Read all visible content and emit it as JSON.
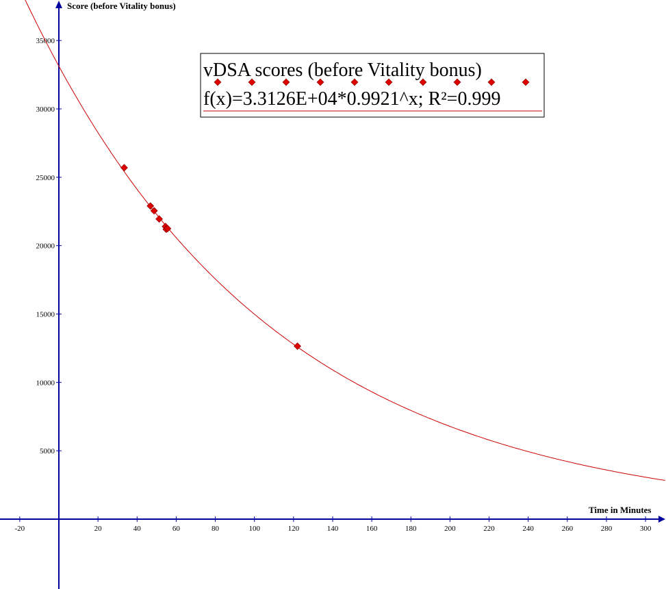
{
  "chart_data": {
    "type": "scatter",
    "xlabel": "Time in Minutes",
    "ylabel": "Score (before Vitality bonus)",
    "xlim": [
      -30,
      310
    ],
    "ylim": [
      -5100,
      37500
    ],
    "x_ticks": [
      -20,
      20,
      40,
      60,
      80,
      100,
      120,
      140,
      160,
      180,
      200,
      220,
      240,
      260,
      280,
      300
    ],
    "y_ticks": [
      5000,
      10000,
      15000,
      20000,
      25000,
      30000,
      35000
    ],
    "grid": false,
    "series": [
      {
        "name": "vDSA scores (before Vitality bonus)",
        "marker": "diamond",
        "color": "#dd0000",
        "points": [
          {
            "x": 33.4,
            "y": 25700
          },
          {
            "x": 46.8,
            "y": 22900
          },
          {
            "x": 48.7,
            "y": 22550
          },
          {
            "x": 51.3,
            "y": 21950
          },
          {
            "x": 54.5,
            "y": 21400
          },
          {
            "x": 54.9,
            "y": 21200
          },
          {
            "x": 55.6,
            "y": 21250
          },
          {
            "x": 122.0,
            "y": 12650
          }
        ]
      }
    ],
    "trendline": {
      "label": "f(x)=3.3126E+04*0.9921^x; R²=0.999",
      "a": 33126,
      "b": 0.9921,
      "color": "#cc0000"
    },
    "legend_position": "top-center",
    "axis_color": "#0000a0"
  }
}
